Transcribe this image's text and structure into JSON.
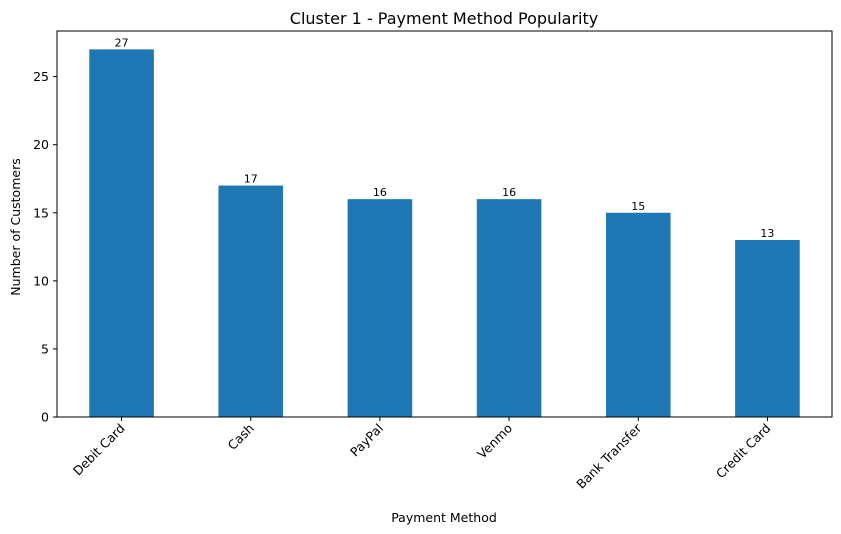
{
  "chart_data": {
    "type": "bar",
    "title": "Cluster 1 - Payment Method Popularity",
    "xlabel": "Payment Method",
    "ylabel": "Number of Customers",
    "categories": [
      "Debit Card",
      "Cash",
      "PayPal",
      "Venmo",
      "Bank Transfer",
      "Credit Card"
    ],
    "values": [
      27,
      17,
      16,
      16,
      15,
      13
    ],
    "ylim": [
      0,
      28.35
    ],
    "yticks": [
      0,
      5,
      10,
      15,
      20,
      25
    ],
    "grid": false,
    "bar_color": "#1f77b4"
  }
}
